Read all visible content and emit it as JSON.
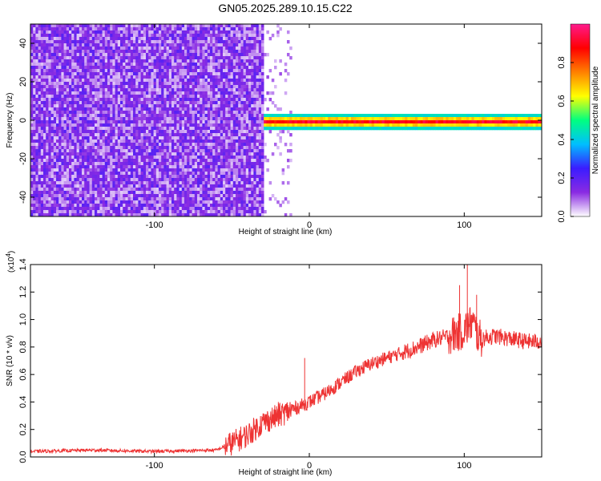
{
  "figure": {
    "title": "GN05.2025.289.10.15.C22"
  },
  "chart_data": [
    {
      "type": "heatmap",
      "xlabel": "Height of straight line (km)",
      "ylabel": "Frequency (Hz)",
      "xlim": [
        -180,
        150
      ],
      "ylim": [
        -50,
        50
      ],
      "xticks": [
        -100,
        0,
        100
      ],
      "xtick_labels": [
        "-100",
        "0",
        "100"
      ],
      "yticks": [
        -40,
        -20,
        0,
        20,
        40
      ],
      "ytick_labels": [
        "-40",
        "-20",
        "0",
        "20",
        "40"
      ],
      "colorbar": {
        "label": "Normalized spectral amplitude",
        "range": [
          0.0,
          1.0
        ],
        "ticks": [
          0.0,
          0.2,
          0.4,
          0.6,
          0.8
        ],
        "tick_labels": [
          "0.0",
          "0.2",
          "0.4",
          "0.6",
          "0.8"
        ],
        "colormap": [
          "#ffffff",
          "#8a2be2",
          "#3b1cff",
          "#00bfff",
          "#00ff80",
          "#ffff00",
          "#ff8000",
          "#ff0000",
          "#ff1a8c"
        ]
      },
      "regions": [
        {
          "x_range": [
            -180,
            -30
          ],
          "freq_range": [
            -50,
            50
          ],
          "amplitude": 0.15,
          "description_color": "#8a2be2"
        },
        {
          "x_range": [
            -30,
            150
          ],
          "freq_center": 0,
          "freq_halfwidth": 3,
          "amplitude": 0.95
        }
      ],
      "grid": false
    },
    {
      "type": "line",
      "xlabel": "Height of straight line (km)",
      "ylabel": "SNR (10 * v/v)",
      "y_multiplier": "(x10",
      "y_multiplier_exp": "4",
      "y_multiplier_close": ")",
      "xlim": [
        -180,
        150
      ],
      "ylim": [
        0,
        1.4
      ],
      "xticks": [
        -100,
        0,
        100
      ],
      "xtick_labels": [
        "-100",
        "0",
        "100"
      ],
      "yticks": [
        0.0,
        0.2,
        0.4,
        0.6,
        0.8,
        1.0,
        1.2,
        1.4
      ],
      "ytick_labels": [
        "0.0",
        "0.2",
        "0.4",
        "0.6",
        "0.8",
        "1.0",
        "1.2",
        "1.4"
      ],
      "series": [
        {
          "color": "#ee3333",
          "x": [
            -180,
            -140,
            -100,
            -60,
            -50,
            -40,
            -30,
            -20,
            -10,
            0,
            10,
            20,
            30,
            40,
            50,
            60,
            70,
            80,
            90,
            100,
            105,
            110,
            120,
            130,
            140,
            150
          ],
          "y": [
            0.04,
            0.05,
            0.04,
            0.05,
            0.1,
            0.16,
            0.25,
            0.3,
            0.35,
            0.4,
            0.46,
            0.54,
            0.62,
            0.68,
            0.72,
            0.76,
            0.8,
            0.85,
            0.88,
            0.92,
            0.98,
            0.86,
            0.88,
            0.86,
            0.84,
            0.84
          ],
          "spikes": [
            {
              "x": -3,
              "y": 0.72
            },
            {
              "x": -20,
              "y": 0.4
            },
            {
              "x": 97,
              "y": 1.25
            },
            {
              "x": 102,
              "y": 1.4
            },
            {
              "x": 108,
              "y": 1.18
            }
          ]
        }
      ],
      "grid": false
    }
  ]
}
